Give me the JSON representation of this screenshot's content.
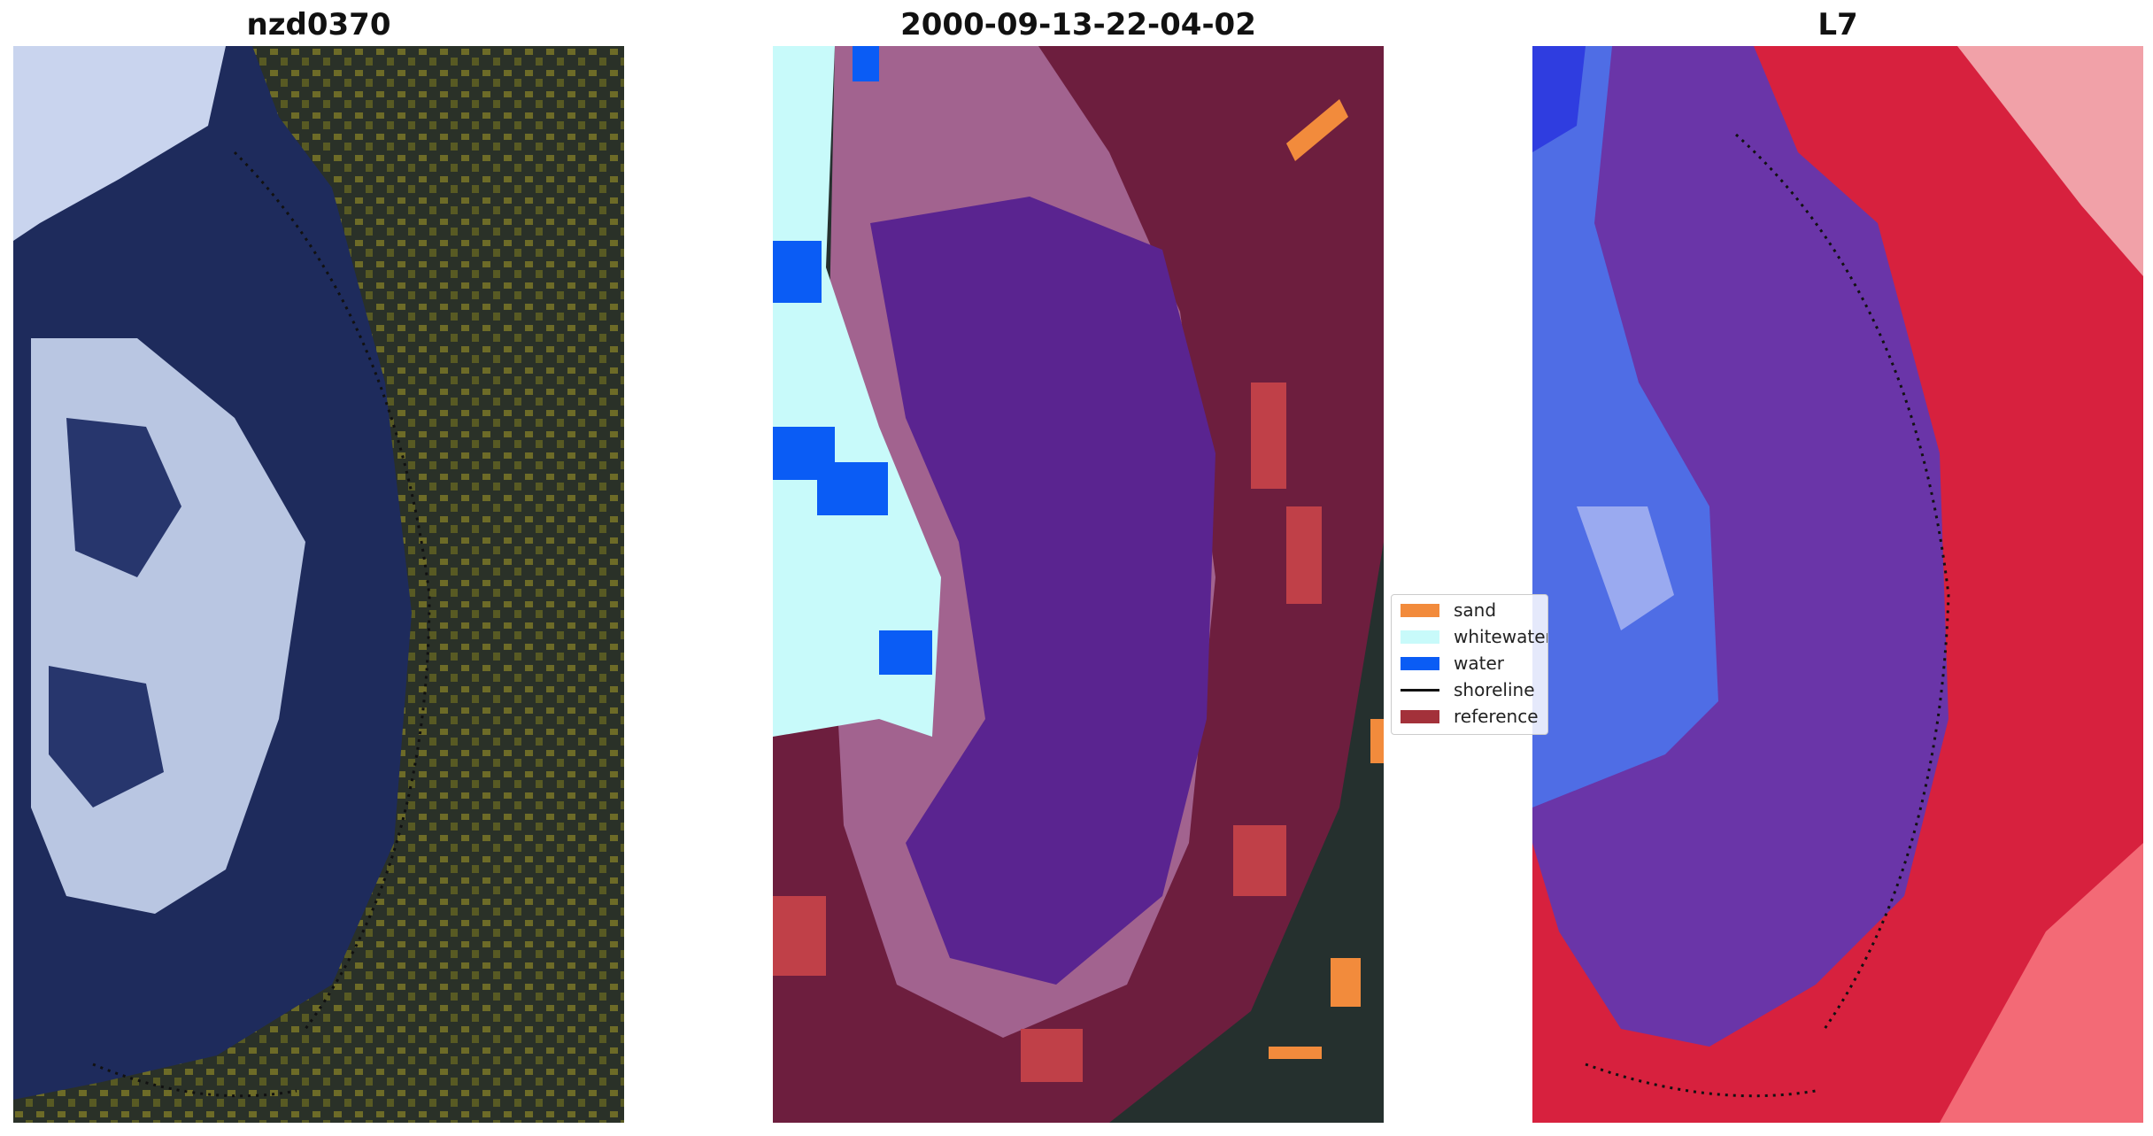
{
  "panels": [
    {
      "title": "nzd0370"
    },
    {
      "title": "2000-09-13-22-04-02"
    },
    {
      "title": "L7"
    }
  ],
  "legend": {
    "items": [
      {
        "label": "sand",
        "color": "#f28b3c",
        "kind": "patch"
      },
      {
        "label": "whitewater",
        "color": "#c8fafa",
        "kind": "patch"
      },
      {
        "label": "water",
        "color": "#0a5cf5",
        "kind": "patch"
      },
      {
        "label": "shoreline",
        "color": "#111111",
        "kind": "line"
      },
      {
        "label": "reference",
        "color": "#a3313a",
        "kind": "patch"
      }
    ]
  }
}
